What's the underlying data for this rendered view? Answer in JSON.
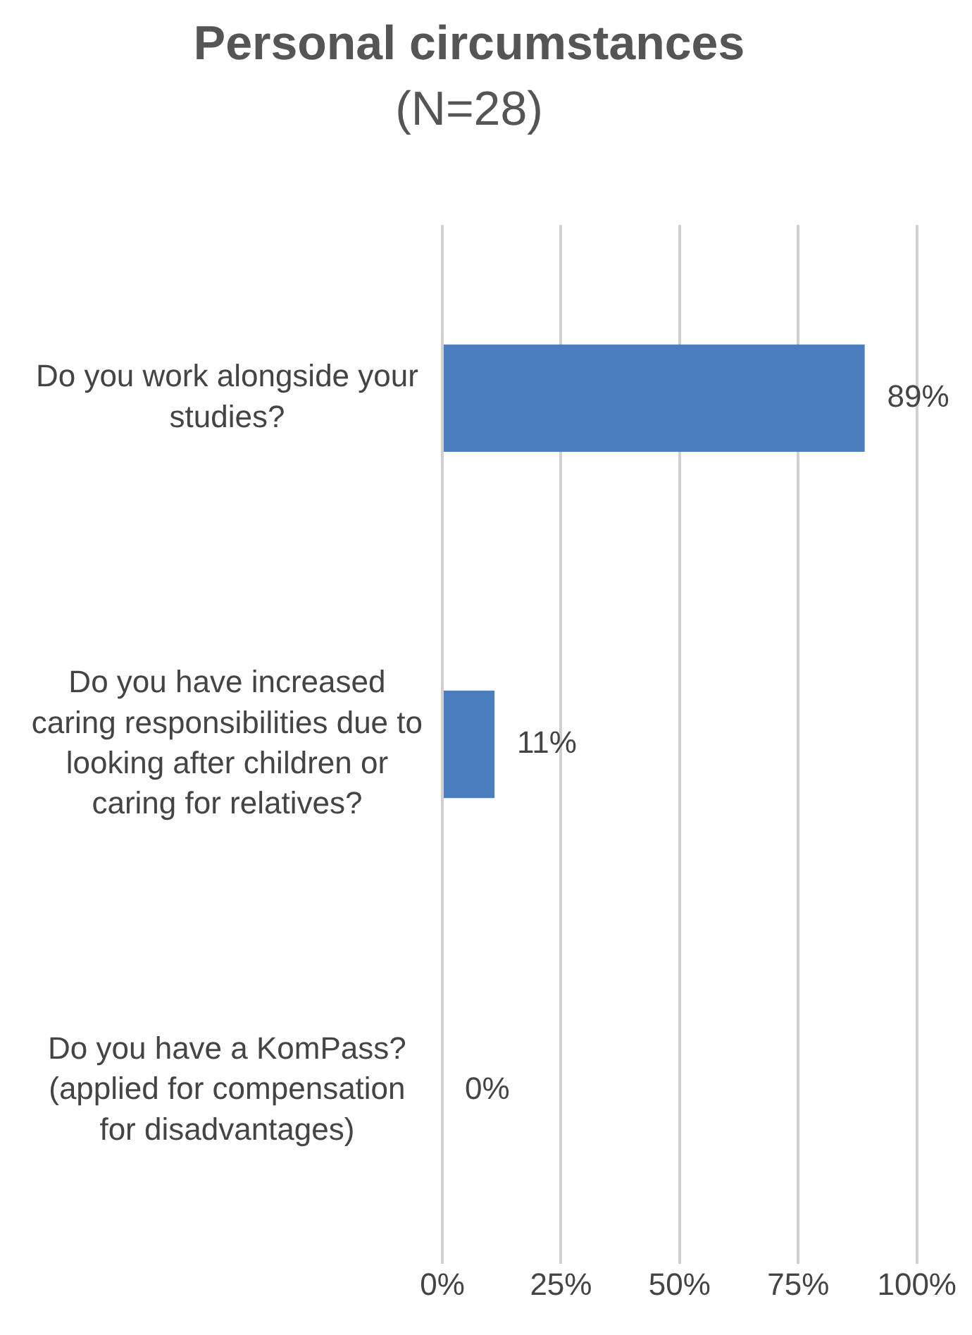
{
  "chart_data": {
    "type": "bar",
    "orientation": "horizontal",
    "title": "Personal circumstances",
    "subtitle": "(N=28)",
    "categories": [
      "Do you work alongside your studies?",
      "Do you have increased caring responsibilities due to looking after children or caring for relatives?",
      "Do you have a KomPass? (applied for compensation for disadvantages)"
    ],
    "values": [
      89,
      11,
      0
    ],
    "value_labels": [
      "89%",
      "11%",
      "0%"
    ],
    "color": "#4a7ebf",
    "xlim": [
      0,
      100
    ],
    "xticks": [
      {
        "value": 0,
        "label": "0%"
      },
      {
        "value": 25,
        "label": "25%"
      },
      {
        "value": 50,
        "label": "50%"
      },
      {
        "value": 75,
        "label": "75%"
      },
      {
        "value": 100,
        "label": "100%"
      }
    ],
    "grid": "x",
    "legend": false
  }
}
